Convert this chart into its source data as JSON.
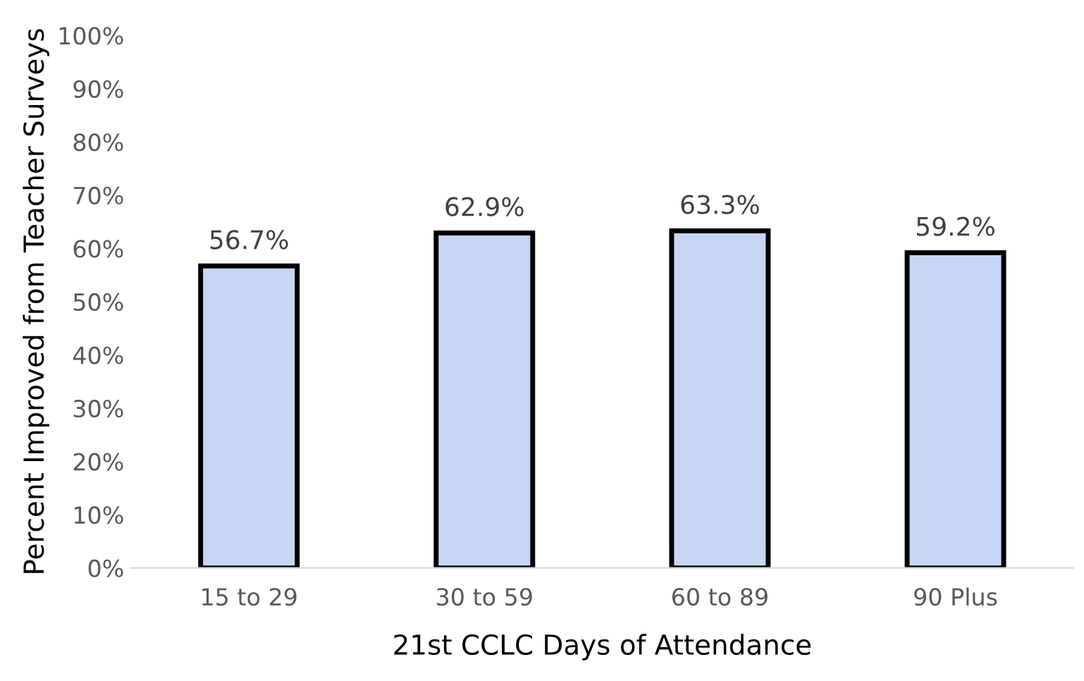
{
  "chart_data": {
    "type": "bar",
    "xlabel": "21st CCLC Days of Attendance",
    "ylabel": "Percent Improved from Teacher Surveys",
    "categories": [
      "15 to 29",
      "30 to 59",
      "60 to 89",
      "90 Plus"
    ],
    "values": [
      56.7,
      62.9,
      63.3,
      59.2
    ],
    "value_labels": [
      "56.7%",
      "62.9%",
      "63.3%",
      "59.2%"
    ],
    "color": "#c6d6f4",
    "ylim": [
      0,
      100
    ],
    "yticks": [
      {
        "value": 0,
        "label": "0%"
      },
      {
        "value": 10,
        "label": "10%"
      },
      {
        "value": 20,
        "label": "20%"
      },
      {
        "value": 30,
        "label": "30%"
      },
      {
        "value": 40,
        "label": "40%"
      },
      {
        "value": 50,
        "label": "50%"
      },
      {
        "value": 60,
        "label": "60%"
      },
      {
        "value": 70,
        "label": "70%"
      },
      {
        "value": 80,
        "label": "80%"
      },
      {
        "value": 90,
        "label": "90%"
      },
      {
        "value": 100,
        "label": "100%"
      }
    ],
    "grid": false,
    "legend": false
  }
}
